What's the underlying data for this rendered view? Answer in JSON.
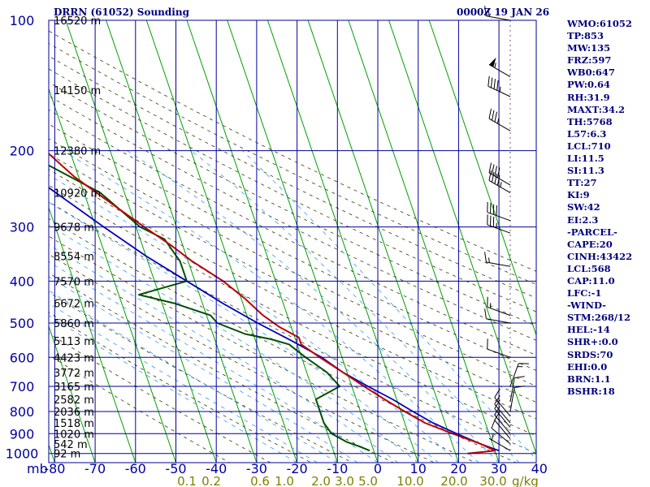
{
  "header": {
    "station": "DRRN (61052) Sounding",
    "valid_time": "0000Z 19 JAN 26"
  },
  "indices": [
    "WMO:61052",
    "TP:853",
    "MW:135",
    "FRZ:597",
    "WB0:647",
    "PW:0.64",
    "RH:31.9",
    "MAXT:34.2",
    "TH:5768",
    "L57:6.3",
    "LCL:710",
    "LI:11.5",
    "SI:11.3",
    "TT:27",
    "KI:9",
    "SW:42",
    "EI:2.3",
    "-PARCEL-",
    "CAPE:20",
    "CINH:43422",
    "LCL:568",
    "CAP:11.0",
    "LFC:-1",
    "-WIND-",
    "STM:268/12",
    "HEL:-14",
    "SHR+:0.0",
    "SRDS:70",
    "EHI:0.0",
    "BRN:1.1",
    "BSHR:18"
  ],
  "colors": {
    "grid": "#00009a",
    "isotherm": "#00a000",
    "dry_adiabat": "#3a3a00",
    "moist_adiabat": "#3399ff",
    "temperature": "#c00000",
    "dewpoint": "#005000",
    "parcel": "#0000c0",
    "axis_text": "#0000a0",
    "mixing_text": "#808000",
    "wind_barb": "#000000"
  },
  "chart_data": {
    "type": "skew-t",
    "pressure_unit": "mb",
    "mixing_ratio_unit": "g/kg",
    "pressure_levels": [
      100,
      200,
      300,
      400,
      500,
      600,
      700,
      800,
      900,
      1000
    ],
    "pressure_labels": [
      "100",
      "200",
      "300",
      "400",
      "500",
      "600",
      "700",
      "800",
      "900",
      "1000"
    ],
    "temperature_ticks": [
      -80,
      -70,
      -60,
      -50,
      -40,
      -30,
      -20,
      -10,
      0,
      10,
      20,
      30,
      40
    ],
    "temperature_labels": [
      "-80",
      "-70",
      "-60",
      "-50",
      "-40",
      "-30",
      "-20",
      "-10",
      "0",
      "10",
      "20",
      "30",
      "40"
    ],
    "mixing_ratio_labels": [
      "0.1",
      "0.2",
      "0.6",
      "1.0",
      "2.0",
      "3.0",
      "5.0",
      "10.0",
      "20.0",
      "30.0"
    ],
    "height_labels": [
      {
        "p": 100,
        "label": "16520 m"
      },
      {
        "p": 145,
        "label": "14150 m"
      },
      {
        "p": 200,
        "label": "12380 m"
      },
      {
        "p": 250,
        "label": "10920 m"
      },
      {
        "p": 300,
        "label": "9678 m"
      },
      {
        "p": 350,
        "label": "8554 m"
      },
      {
        "p": 400,
        "label": "7570 m"
      },
      {
        "p": 450,
        "label": "6672 m"
      },
      {
        "p": 500,
        "label": "5860 m"
      },
      {
        "p": 550,
        "label": "5113 m"
      },
      {
        "p": 600,
        "label": "4423 m"
      },
      {
        "p": 650,
        "label": "3772 m"
      },
      {
        "p": 700,
        "label": "3165 m"
      },
      {
        "p": 750,
        "label": "2582 m"
      },
      {
        "p": 800,
        "label": "2036 m"
      },
      {
        "p": 850,
        "label": "1518 m"
      },
      {
        "p": 900,
        "label": "1020 m"
      },
      {
        "p": 950,
        "label": "542 m"
      },
      {
        "p": 1000,
        "label": "92 m"
      }
    ],
    "temperature": [
      [
        1000,
        23
      ],
      [
        985,
        30
      ],
      [
        950,
        27
      ],
      [
        900,
        21
      ],
      [
        850,
        15
      ],
      [
        800,
        11
      ],
      [
        750,
        7
      ],
      [
        700,
        3
      ],
      [
        650,
        -1
      ],
      [
        600,
        -5.5
      ],
      [
        560,
        -9
      ],
      [
        540,
        -9
      ],
      [
        510,
        -13
      ],
      [
        480,
        -16
      ],
      [
        440,
        -19
      ],
      [
        400,
        -23
      ],
      [
        360,
        -29
      ],
      [
        330,
        -33
      ],
      [
        300,
        -38
      ],
      [
        260,
        -45
      ],
      [
        230,
        -51
      ],
      [
        200,
        -56
      ],
      [
        170,
        -60
      ],
      [
        140,
        -64
      ],
      [
        125,
        -69
      ],
      [
        100,
        -76
      ]
    ],
    "dewpoint": [
      [
        985,
        -1
      ],
      [
        965,
        -3
      ],
      [
        940,
        -6
      ],
      [
        900,
        -9
      ],
      [
        850,
        -10
      ],
      [
        800,
        -10
      ],
      [
        750,
        -10
      ],
      [
        700,
        -3
      ],
      [
        650,
        -5
      ],
      [
        600,
        -9
      ],
      [
        560,
        -12
      ],
      [
        545,
        -16
      ],
      [
        530,
        -22
      ],
      [
        500,
        -28
      ],
      [
        480,
        -29
      ],
      [
        450,
        -37
      ],
      [
        430,
        -45
      ],
      [
        400,
        -32
      ],
      [
        360,
        -32
      ],
      [
        320,
        -34
      ],
      [
        300,
        -39
      ],
      [
        250,
        -46
      ],
      [
        200,
        -62
      ],
      [
        170,
        -69
      ],
      [
        140,
        -73
      ],
      [
        110,
        -77
      ],
      [
        100,
        -78
      ]
    ],
    "parcel": [
      [
        985,
        31
      ],
      [
        950,
        27
      ],
      [
        900,
        22
      ],
      [
        850,
        17
      ],
      [
        800,
        13
      ],
      [
        750,
        9
      ],
      [
        700,
        4
      ],
      [
        650,
        -1
      ],
      [
        600,
        -5
      ],
      [
        550,
        -11
      ],
      [
        500,
        -18
      ],
      [
        450,
        -25
      ],
      [
        400,
        -32
      ],
      [
        350,
        -40
      ],
      [
        300,
        -48
      ],
      [
        250,
        -57
      ],
      [
        200,
        -68
      ],
      [
        180,
        -78
      ],
      [
        170,
        -82
      ]
    ],
    "winds": [
      {
        "p": 100,
        "dir": 280,
        "spd": 15
      },
      {
        "p": 135,
        "dir": 300,
        "spd": 55
      },
      {
        "p": 150,
        "dir": 295,
        "spd": 45
      },
      {
        "p": 180,
        "dir": 300,
        "spd": 35
      },
      {
        "p": 240,
        "dir": 300,
        "spd": 40
      },
      {
        "p": 250,
        "dir": 300,
        "spd": 45
      },
      {
        "p": 290,
        "dir": 290,
        "spd": 40
      },
      {
        "p": 310,
        "dir": 290,
        "spd": 35
      },
      {
        "p": 370,
        "dir": 280,
        "spd": 15
      },
      {
        "p": 480,
        "dir": 290,
        "spd": 15
      },
      {
        "p": 500,
        "dir": 280,
        "spd": 10
      },
      {
        "p": 600,
        "dir": 290,
        "spd": 10
      },
      {
        "p": 700,
        "dir": 20,
        "spd": 15
      },
      {
        "p": 760,
        "dir": 10,
        "spd": 10
      },
      {
        "p": 800,
        "dir": 10,
        "spd": 10
      },
      {
        "p": 820,
        "dir": 320,
        "spd": 10
      },
      {
        "p": 850,
        "dir": 320,
        "spd": 10
      },
      {
        "p": 870,
        "dir": 320,
        "spd": 10
      },
      {
        "p": 900,
        "dir": 320,
        "spd": 10
      },
      {
        "p": 925,
        "dir": 320,
        "spd": 10
      },
      {
        "p": 950,
        "dir": 310,
        "spd": 10
      },
      {
        "p": 985,
        "dir": 300,
        "spd": 5
      }
    ]
  }
}
